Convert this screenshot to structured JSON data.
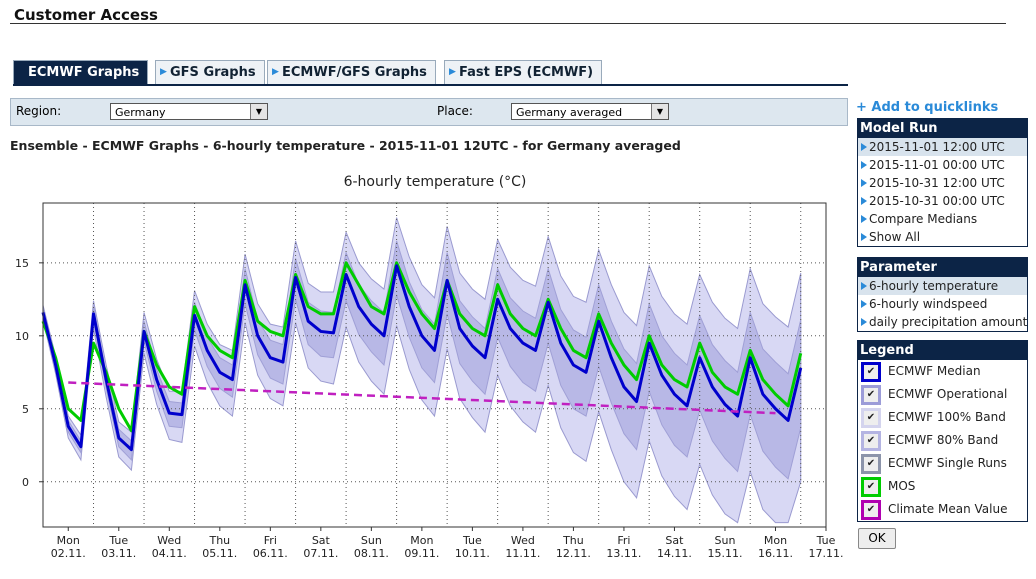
{
  "header": {
    "title": "Customer Access"
  },
  "tabs": [
    "ECMWF Graphs",
    "GFS Graphs",
    "ECMWF/GFS Graphs",
    "Fast EPS (ECMWF)"
  ],
  "filters": {
    "region_label": "Region:",
    "region_value": "Germany",
    "place_label": "Place:",
    "place_value": "Germany averaged"
  },
  "heading": "Ensemble - ECMWF Graphs - 6-hourly temperature - 2015-11-01 12UTC - for Germany averaged",
  "sidebar": {
    "quicklinks": "Add to quicklinks",
    "model_run": {
      "title": "Model Run",
      "items": [
        "2015-11-01 12:00 UTC",
        "2015-11-01 00:00 UTC",
        "2015-10-31 12:00 UTC",
        "2015-10-31 00:00 UTC",
        "Compare Medians",
        "Show All"
      ]
    },
    "parameter": {
      "title": "Parameter",
      "items": [
        "6-hourly temperature",
        "6-hourly windspeed",
        "daily precipitation amount"
      ]
    },
    "legend": {
      "title": "Legend",
      "items": [
        {
          "label": "ECMWF Median",
          "color": "#0000cc"
        },
        {
          "label": "ECMWF Operational",
          "color": "#9c9cd8"
        },
        {
          "label": "ECMWF 100% Band",
          "color": "#d4d4ee"
        },
        {
          "label": "ECMWF 80% Band",
          "color": "#b4b4e2"
        },
        {
          "label": "ECMWF Single Runs",
          "color": "#8c94aa"
        },
        {
          "label": "MOS",
          "color": "#00cc00"
        },
        {
          "label": "Climate Mean Value",
          "color": "#b000b0"
        }
      ]
    },
    "ok": "OK"
  },
  "chart_data": {
    "type": "line",
    "title": "6-hourly temperature (°C)",
    "x": [
      0,
      6,
      12,
      18,
      24,
      30,
      36,
      42,
      48,
      54,
      60,
      66,
      72,
      78,
      84,
      90,
      96,
      102,
      108,
      114,
      120,
      126,
      132,
      138,
      144,
      150,
      156,
      162,
      168,
      174,
      180,
      186,
      192,
      198,
      204,
      210,
      216,
      222,
      228,
      234,
      240,
      246,
      252,
      258,
      264,
      270,
      276,
      282,
      288,
      294,
      300,
      306,
      312,
      318,
      324,
      330,
      336,
      342,
      348,
      354,
      360
    ],
    "xlim": [
      0,
      372
    ],
    "xgrid": [
      24,
      48,
      72,
      96,
      120,
      144,
      168,
      192,
      216,
      240,
      264,
      288,
      312,
      336,
      360
    ],
    "xticks": [
      {
        "value": 12,
        "label": "Mon",
        "date": "02.11."
      },
      {
        "value": 36,
        "label": "Tue",
        "date": "03.11."
      },
      {
        "value": 60,
        "label": "Wed",
        "date": "04.11."
      },
      {
        "value": 84,
        "label": "Thu",
        "date": "05.11."
      },
      {
        "value": 108,
        "label": "Fri",
        "date": "06.11."
      },
      {
        "value": 132,
        "label": "Sat",
        "date": "07.11."
      },
      {
        "value": 156,
        "label": "Sun",
        "date": "08.11."
      },
      {
        "value": 180,
        "label": "Mon",
        "date": "09.11."
      },
      {
        "value": 204,
        "label": "Tue",
        "date": "10.11."
      },
      {
        "value": 228,
        "label": "Wed",
        "date": "11.11."
      },
      {
        "value": 252,
        "label": "Thu",
        "date": "12.11."
      },
      {
        "value": 276,
        "label": "Fri",
        "date": "13.11."
      },
      {
        "value": 300,
        "label": "Sat",
        "date": "14.11."
      },
      {
        "value": 324,
        "label": "Sun",
        "date": "15.11."
      },
      {
        "value": 348,
        "label": "Mon",
        "date": "16.11."
      },
      {
        "value": 372,
        "label": "Tue",
        "date": "17.11."
      }
    ],
    "ylim": [
      -3.1,
      19.1
    ],
    "yticks": [
      0,
      5,
      10,
      15
    ],
    "grid": true,
    "bands": [
      {
        "color": "#d8d8f4",
        "stroke": "#9a9ad0",
        "high": [
          12.1,
          8.6,
          4.5,
          3.2,
          12.4,
          8,
          4.1,
          3.4,
          11.6,
          8.4,
          6.2,
          6.2,
          13.1,
          10.8,
          9.4,
          9,
          15.6,
          12.2,
          10.8,
          10.6,
          16.5,
          13.6,
          13,
          13,
          17.1,
          15,
          13.9,
          13.2,
          18.1,
          15.4,
          13.5,
          12.6,
          17.5,
          14.3,
          13.2,
          12.5,
          16.6,
          14.7,
          13.8,
          13.4,
          16.8,
          14.1,
          12.7,
          12.3,
          15.9,
          13.5,
          11.6,
          10.7,
          14.8,
          12.7,
          11.5,
          10.8,
          14.2,
          12.3,
          11.2,
          10.5,
          14.6,
          12.2,
          11.3,
          10.6,
          14.3
        ],
        "low": [
          11.1,
          7.4,
          3,
          1.5,
          10.5,
          5.8,
          1.7,
          0.8,
          8.8,
          5.3,
          2.9,
          2.7,
          9.3,
          6.8,
          5.2,
          4.5,
          10.9,
          7.3,
          5.7,
          5.2,
          10.9,
          7.8,
          6.9,
          6.7,
          10.6,
          8.2,
          6.9,
          6,
          10.7,
          7.7,
          5.6,
          4.5,
          9.1,
          5.7,
          4.4,
          3.4,
          7.3,
          5.2,
          4.1,
          3.4,
          6.6,
          3.7,
          2,
          1.4,
          4.8,
          2.2,
          0,
          -1.1,
          2.8,
          0.4,
          -1,
          -1.9,
          1.2,
          -0.9,
          -2.2,
          -2.8,
          0.7,
          -1.9,
          -2.8,
          -2.8,
          0
        ]
      },
      {
        "color": "#b8b8e6",
        "stroke": "#a0a0d6",
        "high": [
          11.9,
          8.3,
          4.2,
          2.8,
          12,
          7.5,
          3.6,
          2.8,
          11,
          7.7,
          5.5,
          5.4,
          12.3,
          9.9,
          8.5,
          8,
          14.6,
          11.1,
          9.7,
          9.4,
          15.3,
          12.3,
          11.7,
          11.6,
          15.7,
          13.5,
          12.4,
          11.6,
          16.5,
          13.7,
          11.8,
          10.8,
          15.7,
          12.4,
          11.3,
          10.5,
          14.6,
          12.6,
          11.7,
          11.2,
          14.6,
          11.8,
          10.4,
          9.9,
          13.5,
          11,
          9.1,
          8.1,
          12.2,
          10,
          8.8,
          8,
          11.4,
          9.4,
          8.3,
          7.5,
          11.6,
          9.1,
          8.2,
          7.4,
          11.1
        ],
        "low": [
          11.4,
          7.7,
          3.4,
          2,
          11,
          6.4,
          2.4,
          1.5,
          9.6,
          6.2,
          3.8,
          3.7,
          10.4,
          7.9,
          6.4,
          5.8,
          12.2,
          8.7,
          7.1,
          6.7,
          12.5,
          9.4,
          8.6,
          8.5,
          12.4,
          10.1,
          8.9,
          8,
          12.8,
          9.9,
          7.8,
          6.8,
          11.5,
          8.1,
          6.9,
          6,
          9.9,
          7.9,
          6.8,
          6.2,
          9.5,
          6.6,
          5,
          4.5,
          7.9,
          5.4,
          3.3,
          2.2,
          6.2,
          3.9,
          2.5,
          1.7,
          4.9,
          2.8,
          1.6,
          0.7,
          4.6,
          2.1,
          1,
          0.2,
          3.7
        ]
      }
    ],
    "series": [
      {
        "color": "#00cc00",
        "width": 3,
        "values": [
          11,
          8.5,
          5,
          4.2,
          9.5,
          7.5,
          5,
          3.5,
          10.3,
          8,
          6.5,
          6,
          12,
          10,
          9,
          8.5,
          13.8,
          11,
          10.3,
          10,
          14.2,
          12,
          11.5,
          11.5,
          15,
          13.5,
          12,
          11.5,
          15,
          13,
          11.5,
          10.5,
          13.8,
          11.5,
          10.5,
          10,
          13.5,
          11.5,
          10.5,
          10,
          12.5,
          10.5,
          9,
          8.5,
          11.5,
          9.5,
          8,
          7,
          10,
          8,
          7,
          6.5,
          9.5,
          7.5,
          6.5,
          6,
          9,
          7,
          6,
          5.2,
          8.8
        ]
      },
      {
        "color": "#0000cc",
        "width": 3,
        "values": [
          11.6,
          8,
          3.8,
          2.4,
          11.5,
          7,
          3,
          2.2,
          10.3,
          7,
          4.7,
          4.6,
          11.4,
          9,
          7.5,
          7,
          13.5,
          10,
          8.5,
          8.2,
          14,
          11,
          10.3,
          10.2,
          14.2,
          12,
          10.8,
          10,
          14.8,
          12,
          10,
          9,
          13.8,
          10.5,
          9.3,
          8.5,
          12.5,
          10.5,
          9.5,
          9,
          12.3,
          9.5,
          8,
          7.5,
          11,
          8.5,
          6.5,
          5.5,
          9.5,
          7.3,
          6,
          5.2,
          8.5,
          6.5,
          5.3,
          4.5,
          8.5,
          6,
          5,
          4.2,
          7.8
        ]
      },
      {
        "color": "#c020c0",
        "width": 2.5,
        "dashed": true,
        "x": [
          12,
          348
        ],
        "values": [
          6.8,
          4.7
        ]
      }
    ]
  }
}
